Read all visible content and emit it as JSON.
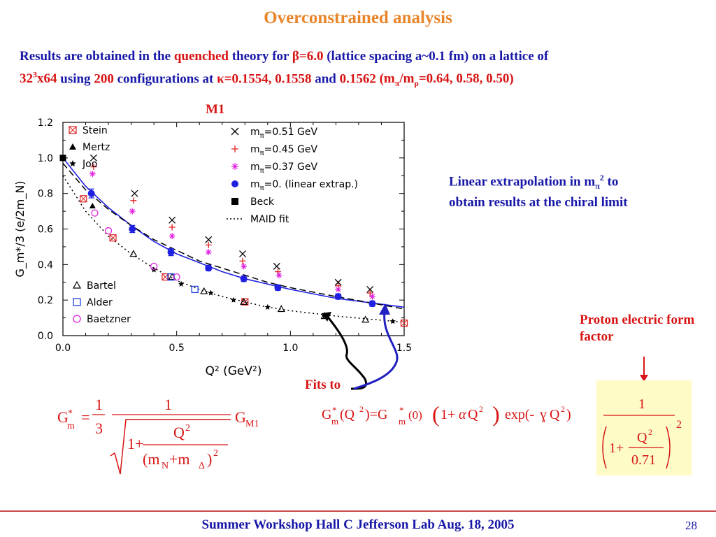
{
  "slide": {
    "title": "Overconstrained analysis",
    "intro": {
      "p1": "Results  are  obtained in the ",
      "quenched": "quenched",
      "p2": " theory  for ",
      "beta": "β=6.0",
      "p3": " (lattice spacing a~0.1 fm) on a lattice of",
      "lattice_a": "32",
      "lattice_sup": "3",
      "lattice_b": "x64",
      "p4": " using ",
      "configs": "200",
      "p5": " configurations at  ",
      "kappa": "κ=0.1554, 0.1558",
      "p6": "  and ",
      "kappa3": "0.1562",
      "p7": " (m",
      "sub_pi": "π",
      "p8": "/m",
      "sub_rho": "ρ",
      "p9": "=0.64, 0.58, 0.50)"
    },
    "plot_title": "M1",
    "annotation": {
      "l1a": "Linear extrapolation in m",
      "sub": "π",
      "sup": "2",
      "l1b": " to",
      "l2": "obtain results at the chiral limit"
    },
    "proton_label": "Proton electric form  factor",
    "fits_to": "Fits to",
    "footer": "Summer Workshop     Hall C Jefferson Lab Aug. 18, 2005",
    "page_number": "28"
  },
  "formula1": {
    "lhs_G": "G",
    "lhs_sub": "m",
    "lhs_sup": "*",
    "eq": "=",
    "frac_num": "1",
    "frac_den": "3",
    "big_num": "1",
    "one_plus": "1+",
    "q2": "Q",
    "q2_sup": "2",
    "den_open": "(m",
    "den_n": "N",
    "den_plus": "+m",
    "den_delta": "Δ",
    "den_close": ")",
    "den_sup": "2",
    "rhs_G": "G",
    "rhs_sub": "M1"
  },
  "formula2": {
    "lhs": "G",
    "lhs_sub": "m",
    "lhs_sup": "*",
    "arg": "(Q",
    "arg_sup": "2",
    "arg_close": ")=G",
    "g0_sub": "m",
    "g0_sup": "*",
    "g0": "(0)",
    "open": "(",
    "oneplus": "1+",
    "alpha": "α",
    "q": "Q",
    "q_sup": "2",
    "close": ")",
    "exp": "exp(-",
    "gamma": "ɣ",
    "q3": "Q",
    "q3_sup": "2",
    "exp_close": ")",
    "ff_num": "1",
    "ff_oneplus": "1+",
    "ff_q": "Q",
    "ff_q_sup": "2",
    "ff_den": "0.71",
    "ff_sup": "2"
  },
  "chart_data": {
    "type": "scatter",
    "xlabel": "Q² (GeV²)",
    "ylabel": "G_m*/3 (e/2m_N)",
    "xlim": [
      0.0,
      1.5
    ],
    "ylim": [
      0.0,
      1.2
    ],
    "xticks": [
      "0.0",
      "0.5",
      "1.0",
      "1.5"
    ],
    "yticks": [
      "0.0",
      "0.2",
      "0.4",
      "0.6",
      "0.8",
      "1.0",
      "1.2"
    ],
    "legend_left_top": [
      {
        "name": "Stein",
        "marker": "boxx",
        "color": "#e02020"
      },
      {
        "name": "Mertz",
        "marker": "tri-fill",
        "color": "#000000"
      },
      {
        "name": "Joo",
        "marker": "star",
        "color": "#000000"
      }
    ],
    "legend_left_bottom": [
      {
        "name": "Bartel",
        "marker": "tri-open",
        "color": "#000000"
      },
      {
        "name": "Alder",
        "marker": "sq-open",
        "color": "#2040e0"
      },
      {
        "name": "Baetzner",
        "marker": "circ-open",
        "color": "#e020e0"
      }
    ],
    "legend_right": [
      {
        "name": "m_π=0.51  GeV",
        "base": "m",
        "sub": "π",
        "rest": "=0.51  GeV",
        "marker": "x",
        "color": "#000000"
      },
      {
        "name": "m_π=0.45  GeV",
        "base": "m",
        "sub": "π",
        "rest": "=0.45  GeV",
        "marker": "plus",
        "color": "#e02020"
      },
      {
        "name": "m_π=0.37  GeV",
        "base": "m",
        "sub": "π",
        "rest": "=0.37  GeV",
        "marker": "asterisk",
        "color": "#e020e0"
      },
      {
        "name": "m_π=0.  (linear  extrap.)",
        "base": "m",
        "sub": "π",
        "rest": "=0.  (linear  extrap.)",
        "marker": "dot",
        "color": "#2020e0"
      },
      {
        "name": "Beck",
        "base": "Beck",
        "sub": "",
        "rest": "",
        "marker": "sq-fill",
        "color": "#000000"
      },
      {
        "name": "MAID  fit",
        "base": "MAID  fit",
        "sub": "",
        "rest": "",
        "marker": "dotted-line",
        "color": "#000000"
      }
    ],
    "series": [
      {
        "name": "m_π=0.51  GeV",
        "marker": "x",
        "color": "#000000",
        "x": [
          0.135,
          0.315,
          0.48,
          0.64,
          0.79,
          0.94,
          1.21,
          1.35
        ],
        "y": [
          1.0,
          0.8,
          0.65,
          0.54,
          0.46,
          0.39,
          0.3,
          0.26
        ]
      },
      {
        "name": "m_π=0.45  GeV",
        "marker": "plus",
        "color": "#e02020",
        "x": [
          0.135,
          0.31,
          0.48,
          0.64,
          0.79,
          0.945,
          1.21,
          1.35
        ],
        "y": [
          0.95,
          0.76,
          0.61,
          0.51,
          0.42,
          0.36,
          0.28,
          0.24
        ]
      },
      {
        "name": "m_π=0.37  GeV",
        "marker": "asterisk",
        "color": "#e020e0",
        "x": [
          0.13,
          0.305,
          0.48,
          0.64,
          0.795,
          0.95,
          1.21,
          1.36
        ],
        "y": [
          0.91,
          0.7,
          0.56,
          0.47,
          0.39,
          0.34,
          0.26,
          0.22
        ]
      },
      {
        "name": "m_π=0.  (linear  extrap.)",
        "marker": "dot",
        "color": "#2020e0",
        "x": [
          0.125,
          0.305,
          0.475,
          0.64,
          0.795,
          0.945,
          1.21,
          1.36
        ],
        "y": [
          0.8,
          0.6,
          0.47,
          0.38,
          0.32,
          0.27,
          0.22,
          0.18
        ],
        "err": [
          0.025,
          0.02,
          0.02,
          0.015,
          0.015,
          0.015,
          0.015,
          0.015
        ]
      },
      {
        "name": "Beck",
        "marker": "sq-fill",
        "color": "#000000",
        "x": [
          0.0
        ],
        "y": [
          1.0
        ]
      },
      {
        "name": "Stein",
        "marker": "boxx",
        "color": "#e02020",
        "x": [
          0.09,
          0.22,
          0.45,
          0.8,
          1.5
        ],
        "y": [
          0.77,
          0.55,
          0.33,
          0.19,
          0.07
        ]
      },
      {
        "name": "Mertz",
        "marker": "tri-fill",
        "color": "#000000",
        "x": [
          0.13
        ],
        "y": [
          0.73
        ]
      },
      {
        "name": "Joo",
        "marker": "star",
        "color": "#000000",
        "x": [
          0.4,
          0.52,
          0.65,
          0.75,
          0.9,
          1.15,
          1.45
        ],
        "y": [
          0.37,
          0.29,
          0.24,
          0.2,
          0.16,
          0.11,
          0.08
        ]
      },
      {
        "name": "Bartel",
        "marker": "tri-open",
        "color": "#000000",
        "x": [
          0.31,
          0.48,
          0.62,
          0.795,
          0.96,
          1.15,
          1.33
        ],
        "y": [
          0.46,
          0.33,
          0.25,
          0.19,
          0.15,
          0.11,
          0.09
        ]
      },
      {
        "name": "Alder",
        "marker": "sq-open",
        "color": "#2040e0",
        "x": [
          0.475,
          0.58
        ],
        "y": [
          0.33,
          0.26
        ]
      },
      {
        "name": "Baetzner",
        "marker": "circ-open",
        "color": "#e020e0",
        "x": [
          0.14,
          0.2,
          0.4,
          0.5
        ],
        "y": [
          0.69,
          0.59,
          0.39,
          0.33
        ]
      }
    ],
    "curves": [
      {
        "name": "blue fit",
        "style": "solid",
        "color": "#2020e0",
        "x": [
          0.0,
          0.1,
          0.2,
          0.3,
          0.4,
          0.5,
          0.6,
          0.7,
          0.8,
          0.9,
          1.0,
          1.2,
          1.5
        ],
        "y": [
          1.0,
          0.84,
          0.72,
          0.62,
          0.53,
          0.46,
          0.41,
          0.36,
          0.32,
          0.29,
          0.26,
          0.21,
          0.16
        ]
      },
      {
        "name": "dashed fit",
        "style": "dashed",
        "color": "#000000",
        "x": [
          0.0,
          0.1,
          0.2,
          0.3,
          0.4,
          0.5,
          0.6,
          0.7,
          0.8,
          0.9,
          1.0,
          1.2,
          1.5
        ],
        "y": [
          0.97,
          0.82,
          0.71,
          0.62,
          0.54,
          0.48,
          0.42,
          0.38,
          0.34,
          0.3,
          0.27,
          0.22,
          0.15
        ]
      },
      {
        "name": "MAID  fit",
        "style": "dotted",
        "color": "#000000",
        "x": [
          0.0,
          0.1,
          0.2,
          0.3,
          0.4,
          0.5,
          0.6,
          0.7,
          0.8,
          0.9,
          1.0,
          1.2,
          1.5
        ],
        "y": [
          0.9,
          0.7,
          0.56,
          0.46,
          0.38,
          0.31,
          0.26,
          0.22,
          0.19,
          0.16,
          0.14,
          0.11,
          0.075
        ]
      }
    ]
  },
  "colors": {
    "title": "#e8852a",
    "text_blue": "#1818a8",
    "text_red": "#d81414",
    "formula_box": "#fdfbc6"
  }
}
